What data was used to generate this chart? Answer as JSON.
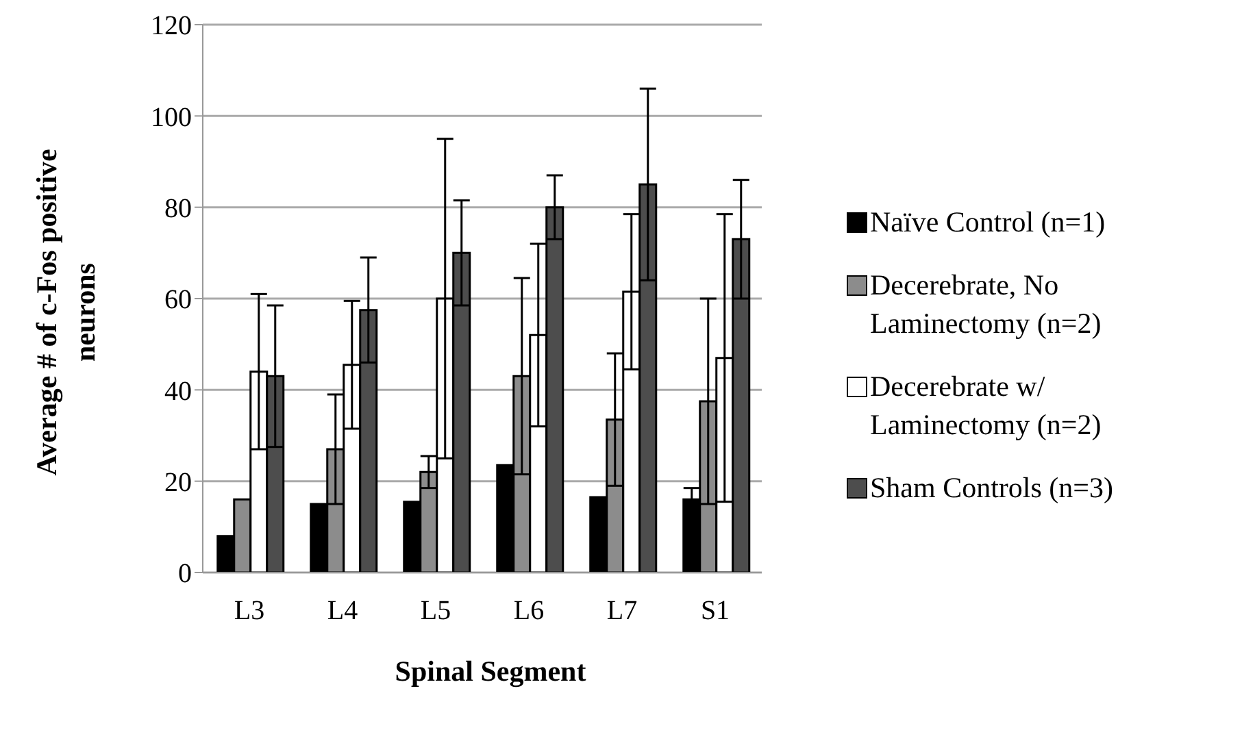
{
  "chart_data": {
    "type": "bar",
    "xlabel": "Spinal Segment",
    "ylabel": "Average # of c-Fos positive neurons",
    "categories": [
      "L3",
      "L4",
      "L5",
      "L6",
      "L7",
      "S1"
    ],
    "series": [
      {
        "name": "Naïve Control (n=1)",
        "color": "#000000",
        "values": [
          8,
          15,
          15.5,
          23.5,
          16.5,
          16
        ],
        "errors": [
          null,
          null,
          null,
          null,
          null,
          2.5
        ]
      },
      {
        "name": "Decerebrate, No Laminectomy (n=2)",
        "color": "#8c8c8c",
        "values": [
          16,
          27,
          22,
          43,
          33.5,
          37.5
        ],
        "errors": [
          null,
          12,
          3.5,
          21.5,
          14.5,
          22.5
        ]
      },
      {
        "name": "Decerebrate w/ Laminectomy (n=2)",
        "color": "#ffffff",
        "values": [
          44,
          45.5,
          60,
          52,
          61.5,
          47
        ],
        "errors": [
          17,
          14,
          35,
          20,
          17,
          31.5
        ]
      },
      {
        "name": "Sham Controls (n=3)",
        "color": "#4d4d4d",
        "values": [
          43,
          57.5,
          70,
          80,
          85,
          73
        ],
        "errors": [
          15.5,
          11.5,
          11.5,
          7,
          21,
          13
        ]
      }
    ],
    "ylim": [
      0,
      120
    ],
    "yticks": [
      0,
      20,
      40,
      60,
      80,
      100,
      120
    ],
    "grid": "y",
    "legend": "right"
  }
}
